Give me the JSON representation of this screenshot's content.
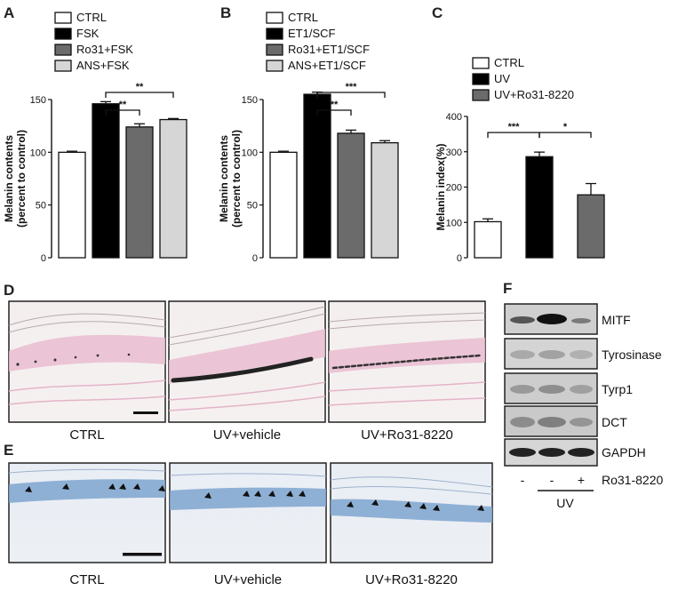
{
  "chart_data": [
    {
      "panel": "A",
      "type": "bar",
      "ylabel": [
        "Melanin contents",
        "(percent to control)"
      ],
      "ylim": [
        0,
        150
      ],
      "yticks": [
        "0",
        "50",
        "100",
        "150"
      ],
      "legend": [
        "CTRL",
        "FSK",
        "Ro31+FSK",
        "ANS+FSK"
      ],
      "categories": [
        "CTRL",
        "FSK",
        "Ro31+FSK",
        "ANS+FSK"
      ],
      "values": [
        100,
        146,
        124,
        131
      ],
      "errors": [
        1,
        2,
        3,
        1
      ],
      "colors": [
        "#ffffff",
        "#000000",
        "#6b6b6b",
        "#d6d6d6"
      ],
      "significance": [
        {
          "from": 1,
          "to": 3,
          "label": "**"
        },
        {
          "from": 1,
          "to": 2,
          "label": "**"
        }
      ]
    },
    {
      "panel": "B",
      "type": "bar",
      "ylabel": [
        "Melanin contents",
        "(percent to control)"
      ],
      "ylim": [
        0,
        150
      ],
      "yticks": [
        "0",
        "50",
        "100",
        "150"
      ],
      "legend": [
        "CTRL",
        "ET1/SCF",
        "Ro31+ET1/SCF",
        "ANS+ET1/SCF"
      ],
      "categories": [
        "CTRL",
        "ET1/SCF",
        "Ro31+ET1/SCF",
        "ANS+ET1/SCF"
      ],
      "values": [
        100,
        155,
        118,
        109
      ],
      "errors": [
        1,
        2,
        3,
        2
      ],
      "colors": [
        "#ffffff",
        "#000000",
        "#6b6b6b",
        "#d6d6d6"
      ],
      "significance": [
        {
          "from": 1,
          "to": 3,
          "label": "***"
        },
        {
          "from": 1,
          "to": 2,
          "label": "**"
        }
      ]
    },
    {
      "panel": "C",
      "type": "bar",
      "ylabel": [
        "Melanin index(%)"
      ],
      "ylim": [
        0,
        400
      ],
      "yticks": [
        "0",
        "100",
        "200",
        "300",
        "400"
      ],
      "legend": [
        "CTRL",
        "UV",
        "UV+Ro31-8220"
      ],
      "categories": [
        "CTRL",
        "UV",
        "UV+Ro31-8220"
      ],
      "values": [
        102,
        286,
        178
      ],
      "errors": [
        8,
        13,
        32
      ],
      "colors": [
        "#ffffff",
        "#000000",
        "#6b6b6b"
      ],
      "significance": [
        {
          "from": 0,
          "to": 1,
          "label": "***"
        },
        {
          "from": 1,
          "to": 2,
          "label": "*"
        }
      ]
    }
  ],
  "panels": {
    "a": "A",
    "b": "B",
    "c": "C",
    "d": "D",
    "e": "E",
    "f": "F"
  },
  "histology_d": {
    "captions": [
      "CTRL",
      "UV+vehicle",
      "UV+Ro31-8220"
    ]
  },
  "histology_e": {
    "captions": [
      "CTRL",
      "UV+vehicle",
      "UV+Ro31-8220"
    ]
  },
  "western_blot": {
    "proteins": [
      "MITF",
      "Tyrosinase",
      "Tyrp1",
      "DCT",
      "GAPDH"
    ],
    "lane_signs": [
      "-",
      "-",
      "+"
    ],
    "treatment_label": "Ro31-8220",
    "group_label": "UV"
  }
}
